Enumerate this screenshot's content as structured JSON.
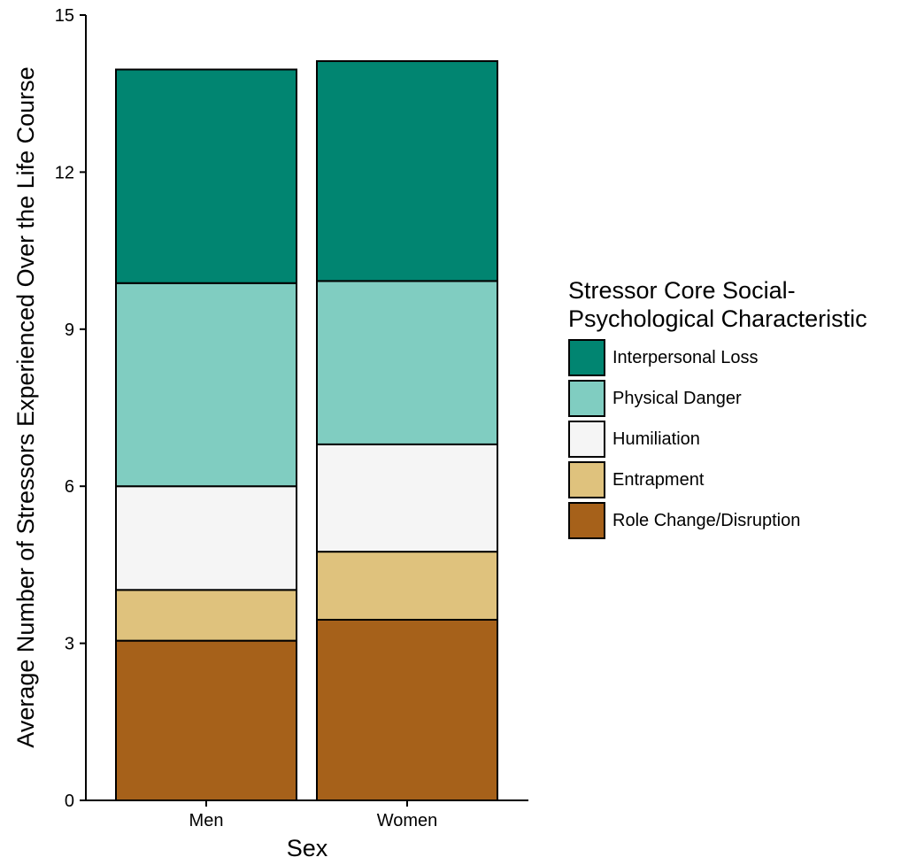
{
  "chart_data": {
    "type": "bar",
    "stacked": true,
    "title": "",
    "xlabel": "Sex",
    "ylabel": "Average Number of Stressors Experienced Over the Life Course",
    "ylim": [
      0,
      15
    ],
    "yticks": [
      "0",
      "3",
      "6",
      "9",
      "12",
      "15"
    ],
    "categories": [
      "Men",
      "Women"
    ],
    "grid": false,
    "legend_position": "right",
    "legend_title": [
      "Stressor Core Social-",
      "Psychological Characteristic"
    ],
    "series": [
      {
        "name": "Role Change/Disruption",
        "color": "#a6611a",
        "values": [
          3.05,
          3.45
        ]
      },
      {
        "name": "Entrapment",
        "color": "#dfc27d",
        "values": [
          0.97,
          1.3
        ]
      },
      {
        "name": "Humiliation",
        "color": "#f5f5f5",
        "values": [
          1.98,
          2.05
        ]
      },
      {
        "name": "Physical Danger",
        "color": "#80cdc1",
        "values": [
          3.88,
          3.12
        ]
      },
      {
        "name": "Interpersonal Loss",
        "color": "#018571",
        "values": [
          4.08,
          4.2
        ]
      }
    ]
  }
}
